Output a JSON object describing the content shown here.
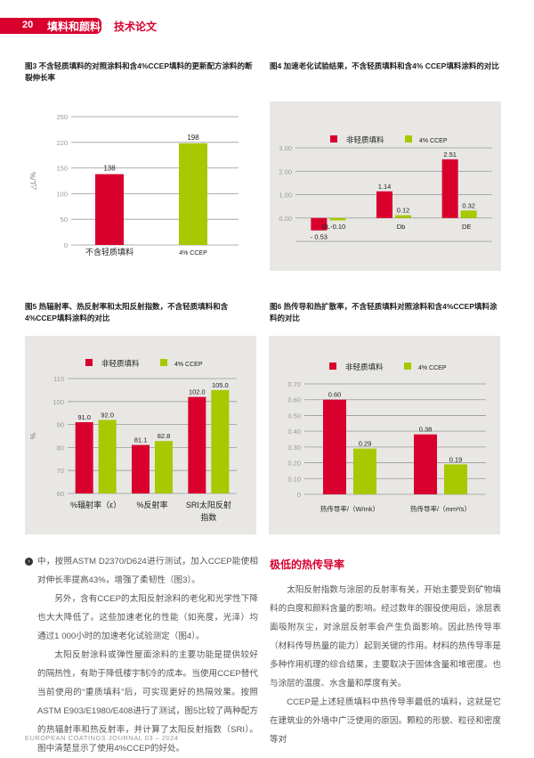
{
  "header": {
    "page_number": "20",
    "section": "填料和颜料",
    "category": "技术论文",
    "accent_color": "#d9002e"
  },
  "colors": {
    "control": "#d9002e",
    "ccep": "#a8c800",
    "panel_bg": "#e8e7e4"
  },
  "figures": {
    "fig3": {
      "caption": "图3 不含轻质填料的对照涂料和含4%CCEP填料的更新配方涂料的断裂伸长率"
    },
    "fig4": {
      "caption": "图4 加速老化试验结果，不含轻质填料和含4% CCEP填料涂料的对比"
    },
    "fig5": {
      "caption": "图5 热辐射率、热反射率和太阳反射指数，不含轻质填料和含4%CCEP填料涂料的对比"
    },
    "fig6": {
      "caption": "图6 热传导和热扩散率，不含轻质填料对照涂料和含4%CCEP填料涂料的对比"
    }
  },
  "chart_data": [
    {
      "id": "fig3",
      "type": "bar",
      "title": "",
      "ylabel": "△L/%",
      "ylim": [
        0,
        250
      ],
      "yticks": [
        "0",
        "50",
        "100",
        "150",
        "220",
        "250"
      ],
      "grid": true,
      "categories": [
        "不含轻质填料",
        "4% CCEP"
      ],
      "series": [
        {
          "values": [
            138,
            198
          ],
          "labels": [
            "138",
            "198"
          ],
          "colors": [
            "#d9002e",
            "#a8c800"
          ]
        }
      ]
    },
    {
      "id": "fig4",
      "type": "bar",
      "ylim": [
        -1,
        3
      ],
      "yticks": [
        "0.00",
        "1.00",
        "2.00",
        "3.00"
      ],
      "grid": true,
      "legend": "top",
      "categories": [
        "DL",
        "Db",
        "DE"
      ],
      "category_labels": [
        "DL-0.10",
        "Db",
        "DE"
      ],
      "series": [
        {
          "name": "非轻质填料",
          "values": [
            -0.53,
            1.14,
            2.51
          ],
          "labels": [
            "- 0.53",
            "1.14",
            "2.51"
          ]
        },
        {
          "name": "4% CCEP",
          "values": [
            -0.1,
            0.12,
            0.32
          ],
          "labels": [
            "",
            "0.12",
            "0.32"
          ]
        }
      ]
    },
    {
      "id": "fig5",
      "type": "bar",
      "ylabel": "%",
      "ylim": [
        60,
        110
      ],
      "yticks": [
        "60",
        "70",
        "80",
        "90",
        "100",
        "110"
      ],
      "grid": true,
      "legend": "top",
      "categories": [
        "%辐射率（ε）",
        "%反射率",
        "SRI太阳反射指数"
      ],
      "series": [
        {
          "name": "非轻质填料",
          "values": [
            91.0,
            81.1,
            102.0
          ],
          "labels": [
            "91.0",
            "81.1",
            "102.0"
          ]
        },
        {
          "name": "4% CCEP",
          "values": [
            92.0,
            82.8,
            105.0
          ],
          "labels": [
            "92.0",
            "82.8",
            "105.0"
          ]
        }
      ]
    },
    {
      "id": "fig6",
      "type": "bar",
      "ylim": [
        0,
        0.7
      ],
      "yticks": [
        "0",
        "0.10",
        "0.20",
        "0.30",
        "0.40",
        "0.50",
        "0.60",
        "0.70"
      ],
      "grid": true,
      "legend": "top",
      "categories": [
        "热传导率/（W/mk）",
        "热传导率/（mm²/s）"
      ],
      "series": [
        {
          "name": "非轻质填料",
          "values": [
            0.6,
            0.38
          ],
          "labels": [
            "0.60",
            "0.38"
          ]
        },
        {
          "name": "4% CCEP",
          "values": [
            0.29,
            0.19
          ],
          "labels": [
            "0.29",
            "0.19"
          ]
        }
      ]
    }
  ],
  "body": {
    "left": [
      "中，按照ASTM D2370/D624进行测试，加入CCEP能使相对伸长率提高43%，增强了柔韧性（图3）。",
      "另外，含有CCEP的太阳反射涂料的老化和光学性下降也大大降低了。这些加速老化的性能（如亮度，光泽）均通过1 000小时的加速老化试验测定（图4）。",
      "太阳反射涂料或弹性屋面涂料的主要功能是提供较好的隔热性，有助于降低楼宇制冷的成本。当使用CCEP替代当前使用的“重质填料”后，可实现更好的热隔效果。按照ASTM E903/E1980/E408进行了测试，图5比较了两种配方的热辐射率和热反射率，并计算了太阳反射指数（SRI）。图中清楚显示了使用4%CCEP的好处。"
    ],
    "heading": "极低的热传导率",
    "right": [
      "太阳反射指数与涂层的反射率有关，开始主要受到矿物填料的白度和颜料含量的影响。经过数年的服役使用后，涂层表面吸附灰尘，对涂层反射率会产生负面影响。因此热传导率（材料传导热量的能力）起到关键的作用。材料的热传导率是多种作用机理的综合结果，主要取决于固体含量和堆密度。也与涂层的温度、水含量和厚度有关。",
      "CCEP是上述轻质填料中热传导率最低的填料，这就是它在建筑业的外墙中广泛使用的原因。颗粒的形貌、粒径和密度等对"
    ]
  },
  "footer": "EUROPEAN COATINGS JOURNAL 03 – 2024"
}
